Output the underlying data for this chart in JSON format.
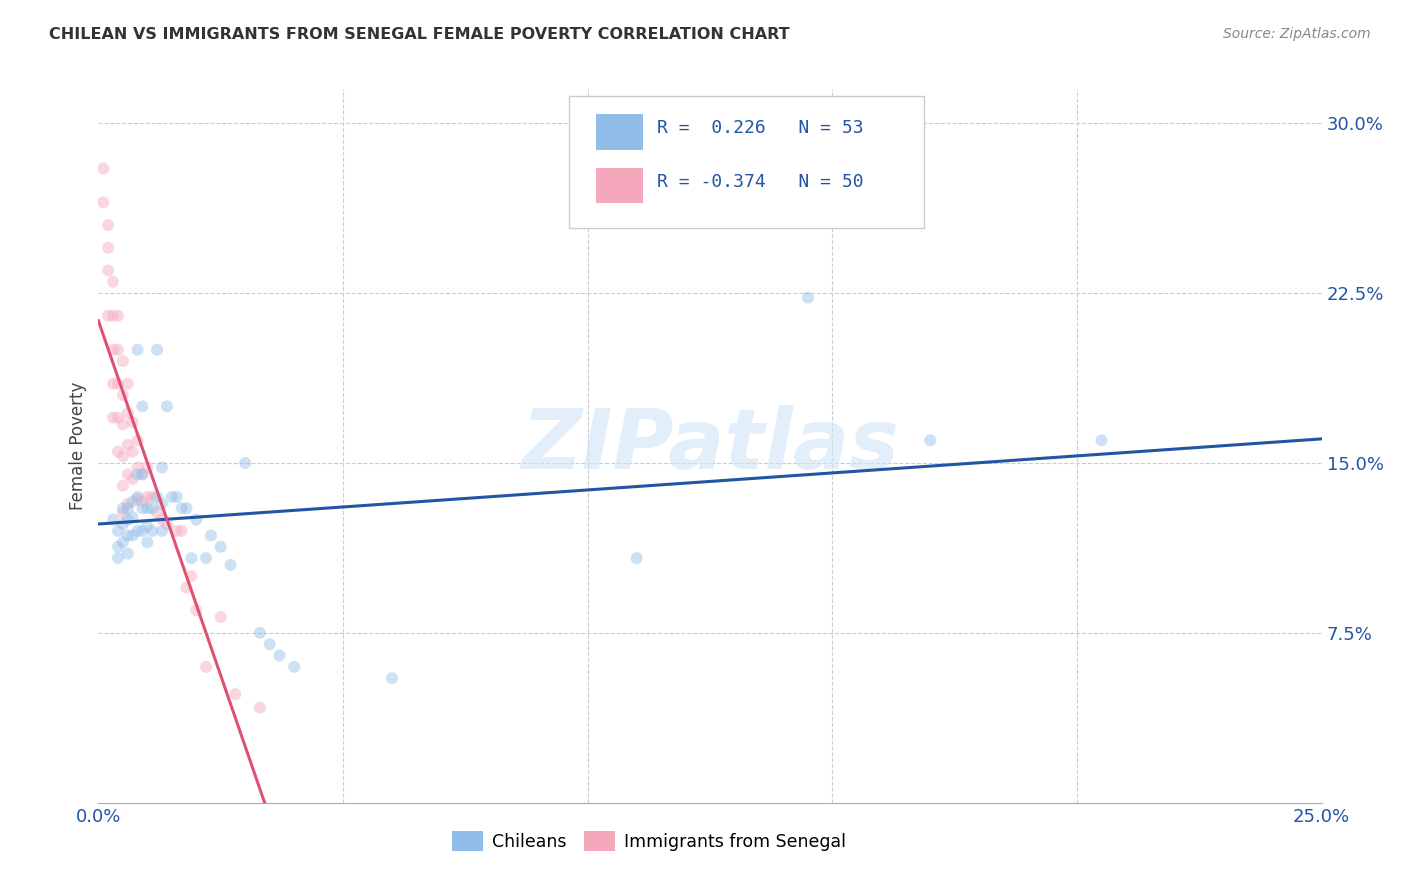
{
  "title": "CHILEAN VS IMMIGRANTS FROM SENEGAL FEMALE POVERTY CORRELATION CHART",
  "source": "Source: ZipAtlas.com",
  "ylabel": "Female Poverty",
  "ytick_labels": [
    "30.0%",
    "22.5%",
    "15.0%",
    "7.5%"
  ],
  "ytick_values": [
    0.3,
    0.225,
    0.15,
    0.075
  ],
  "xlim": [
    0.0,
    0.25
  ],
  "ylim": [
    0.0,
    0.315
  ],
  "watermark": "ZIPatlas",
  "legend_text1": "R =  0.226   N = 53",
  "legend_text2": "R = -0.374   N = 50",
  "chilean_color": "#92BDE8",
  "senegal_color": "#F5A8BC",
  "line_chilean_color": "#2255A4",
  "line_senegal_color": "#E05070",
  "chilean_x": [
    0.003,
    0.004,
    0.004,
    0.004,
    0.005,
    0.005,
    0.005,
    0.006,
    0.006,
    0.006,
    0.006,
    0.007,
    0.007,
    0.007,
    0.008,
    0.008,
    0.008,
    0.008,
    0.009,
    0.009,
    0.009,
    0.009,
    0.01,
    0.01,
    0.01,
    0.011,
    0.011,
    0.012,
    0.012,
    0.013,
    0.013,
    0.013,
    0.014,
    0.015,
    0.016,
    0.017,
    0.018,
    0.019,
    0.02,
    0.022,
    0.023,
    0.025,
    0.027,
    0.03,
    0.033,
    0.035,
    0.037,
    0.04,
    0.06,
    0.11,
    0.145,
    0.17,
    0.205
  ],
  "chilean_y": [
    0.125,
    0.12,
    0.113,
    0.108,
    0.13,
    0.123,
    0.115,
    0.13,
    0.125,
    0.118,
    0.11,
    0.133,
    0.126,
    0.118,
    0.2,
    0.145,
    0.135,
    0.12,
    0.175,
    0.145,
    0.13,
    0.12,
    0.13,
    0.122,
    0.115,
    0.13,
    0.12,
    0.2,
    0.135,
    0.148,
    0.132,
    0.12,
    0.175,
    0.135,
    0.135,
    0.13,
    0.13,
    0.108,
    0.125,
    0.108,
    0.118,
    0.113,
    0.105,
    0.15,
    0.075,
    0.07,
    0.065,
    0.06,
    0.055,
    0.108,
    0.223,
    0.16,
    0.16
  ],
  "senegal_x": [
    0.001,
    0.001,
    0.002,
    0.002,
    0.002,
    0.002,
    0.003,
    0.003,
    0.003,
    0.003,
    0.003,
    0.004,
    0.004,
    0.004,
    0.004,
    0.004,
    0.005,
    0.005,
    0.005,
    0.005,
    0.005,
    0.005,
    0.006,
    0.006,
    0.006,
    0.006,
    0.006,
    0.007,
    0.007,
    0.007,
    0.008,
    0.008,
    0.008,
    0.009,
    0.009,
    0.01,
    0.01,
    0.011,
    0.012,
    0.013,
    0.014,
    0.016,
    0.017,
    0.018,
    0.019,
    0.02,
    0.022,
    0.025,
    0.028,
    0.033
  ],
  "senegal_y": [
    0.28,
    0.265,
    0.255,
    0.245,
    0.235,
    0.215,
    0.23,
    0.215,
    0.2,
    0.185,
    0.17,
    0.215,
    0.2,
    0.185,
    0.17,
    0.155,
    0.195,
    0.18,
    0.167,
    0.153,
    0.14,
    0.128,
    0.185,
    0.172,
    0.158,
    0.145,
    0.132,
    0.168,
    0.155,
    0.143,
    0.16,
    0.148,
    0.134,
    0.145,
    0.133,
    0.148,
    0.135,
    0.135,
    0.128,
    0.125,
    0.123,
    0.12,
    0.12,
    0.095,
    0.1,
    0.085,
    0.06,
    0.082,
    0.048,
    0.042
  ],
  "background_color": "#FFFFFF",
  "grid_color": "#CCCCCC",
  "marker_size": 75,
  "marker_alpha": 0.45,
  "line_width": 2.2,
  "line_chilean_start_y": 0.119,
  "line_chilean_end_y": 0.168,
  "line_senegal_start_y": 0.184,
  "line_senegal_slope": -8.5
}
